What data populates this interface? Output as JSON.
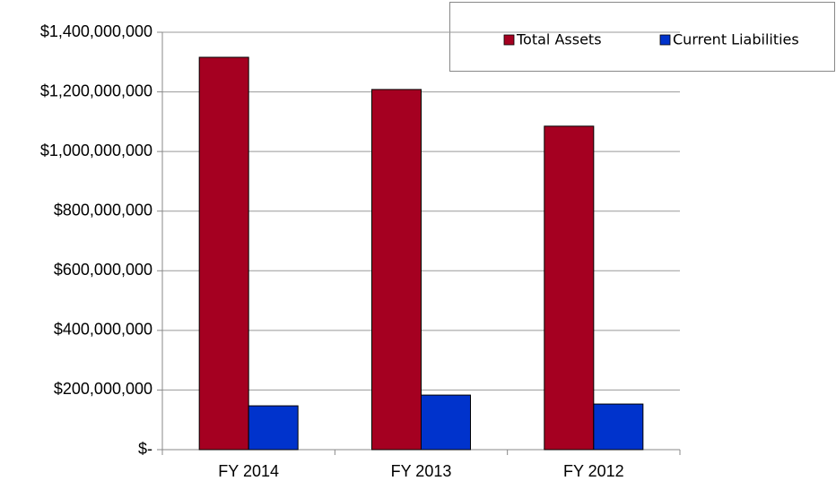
{
  "chart_data": {
    "type": "bar",
    "categories": [
      "FY 2014",
      "FY 2013",
      "FY 2012"
    ],
    "series": [
      {
        "name": "Total Assets",
        "color": "#a50021",
        "values": [
          1316000000,
          1208000000,
          1085000000
        ]
      },
      {
        "name": "Current Liabilities",
        "color": "#0033cc",
        "values": [
          147000000,
          183000000,
          153000000
        ]
      }
    ],
    "ylim": [
      0,
      1400000000
    ],
    "yticks": [
      {
        "value": 0,
        "label": "$-"
      },
      {
        "value": 200000000,
        "label": "$200,000,000"
      },
      {
        "value": 400000000,
        "label": "$400,000,000"
      },
      {
        "value": 600000000,
        "label": "$600,000,000"
      },
      {
        "value": 800000000,
        "label": "$800,000,000"
      },
      {
        "value": 1000000000,
        "label": "$1,000,000,000"
      },
      {
        "value": 1200000000,
        "label": "$1,200,000,000"
      },
      {
        "value": 1400000000,
        "label": "$1,400,000,000"
      }
    ],
    "grid": true,
    "legend": "top-right"
  }
}
